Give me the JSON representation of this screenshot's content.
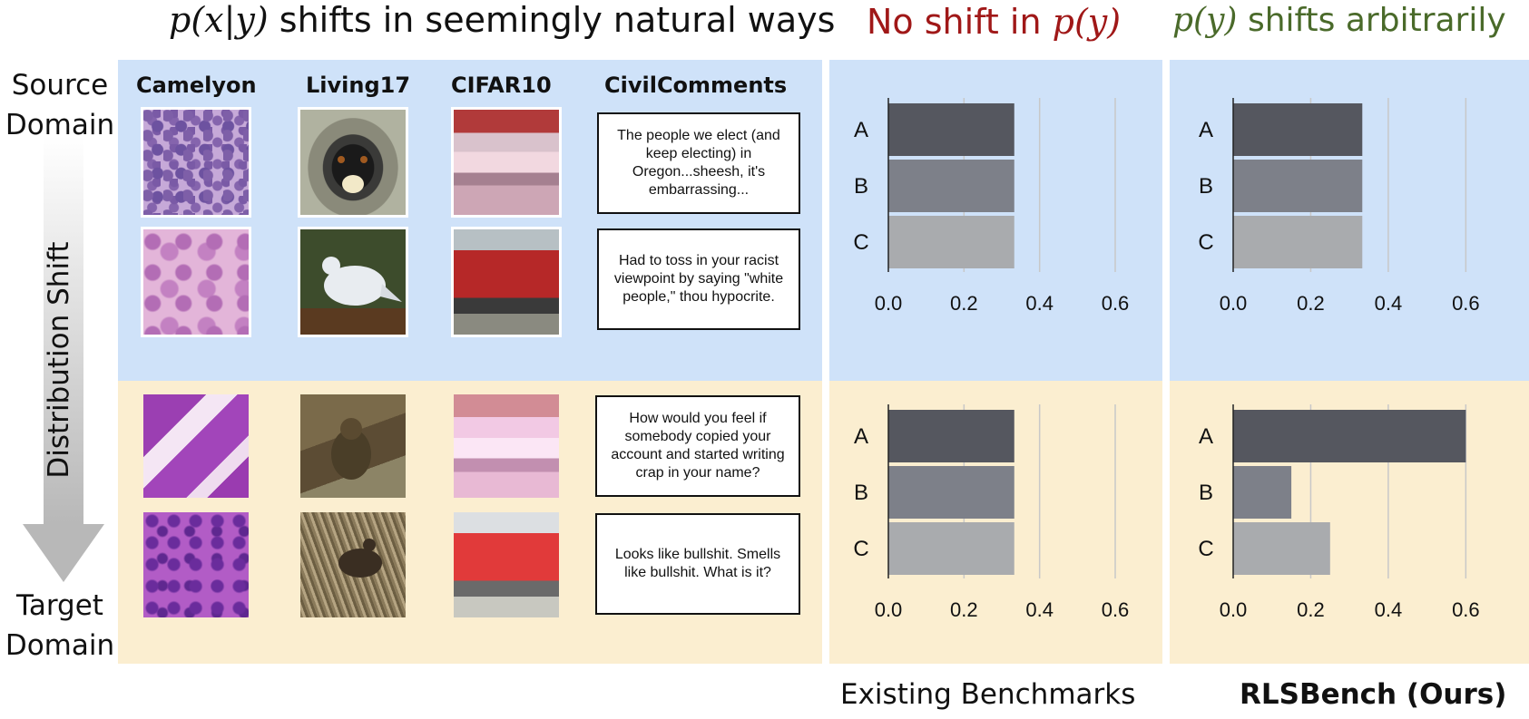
{
  "header": {
    "left_math": "p(x|y)",
    "left_text": "shifts in seemingly natural ways",
    "middle_text": "No shift in",
    "middle_math": "p(y)",
    "right_math": "p(y)",
    "right_text": "shifts arbitrarily"
  },
  "colors": {
    "source_bg": "#cfe2f9",
    "target_bg": "#fbeed0",
    "middle_heading": "#a01818",
    "right_heading": "#4a6a2a",
    "bar_a": "#55575f",
    "bar_b": "#7d8089",
    "bar_c": "#a9abae"
  },
  "side": {
    "source_label": "Source Domain",
    "shift_label": "Distribution Shift",
    "target_label": "Target Domain"
  },
  "datasets": [
    "Camelyon",
    "Living17",
    "CIFAR10",
    "CivilComments"
  ],
  "comments": {
    "source": [
      "The people we elect (and keep electing) in Oregon...sheesh, it's embarrassing...",
      "Had to toss in your racist viewpoint by saying \"white people,\" thou hypocrite."
    ],
    "target": [
      "How would you feel if somebody copied your account and started writing crap in your name?",
      "Looks like bullshit. Smells like bullshit. What is it?"
    ]
  },
  "footer": {
    "existing": "Existing Benchmarks",
    "ours": "RLSBench (Ours)"
  },
  "chart_data": [
    {
      "type": "bar",
      "orientation": "horizontal",
      "categories": [
        "A",
        "B",
        "C"
      ],
      "values": [
        0.333,
        0.333,
        0.333
      ],
      "xticks": [
        "0.0",
        "0.2",
        "0.4",
        "0.6"
      ],
      "xlim": [
        0,
        0.66
      ]
    },
    {
      "type": "bar",
      "orientation": "horizontal",
      "categories": [
        "A",
        "B",
        "C"
      ],
      "values": [
        0.333,
        0.333,
        0.333
      ],
      "xticks": [
        "0.0",
        "0.2",
        "0.4",
        "0.6"
      ],
      "xlim": [
        0,
        0.66
      ]
    },
    {
      "type": "bar",
      "orientation": "horizontal",
      "categories": [
        "A",
        "B",
        "C"
      ],
      "values": [
        0.333,
        0.333,
        0.333
      ],
      "xticks": [
        "0.0",
        "0.2",
        "0.4",
        "0.6"
      ],
      "xlim": [
        0,
        0.66
      ]
    },
    {
      "type": "bar",
      "orientation": "horizontal",
      "categories": [
        "A",
        "B",
        "C"
      ],
      "values": [
        0.6,
        0.15,
        0.25
      ],
      "xticks": [
        "0.0",
        "0.2",
        "0.4",
        "0.6"
      ],
      "xlim": [
        0,
        0.66
      ]
    }
  ]
}
